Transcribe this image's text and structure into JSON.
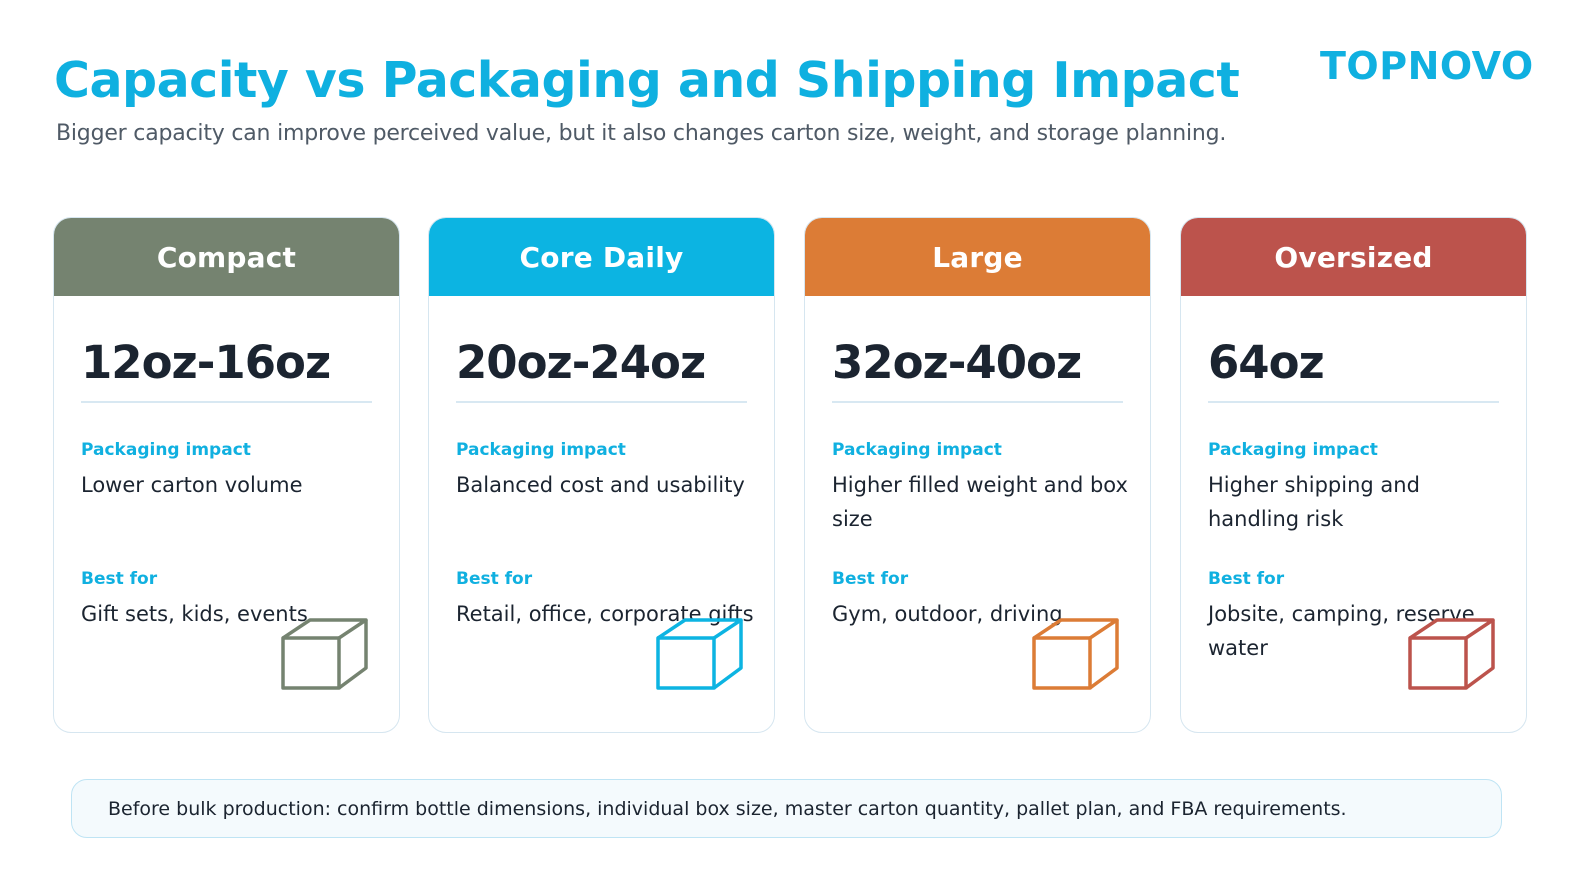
{
  "brand": "TOPNOVO",
  "title": "Capacity vs Packaging and Shipping Impact",
  "subtitle": "Bigger capacity can improve perceived value, but it also changes carton size, weight, and storage planning.",
  "cards": [
    {
      "name": "Compact",
      "color": "#758370",
      "size": "12oz-16oz",
      "packaging_label": "Packaging impact",
      "packaging": "Lower carton volume",
      "best_label": "Best for",
      "best": "Gift sets, kids, events",
      "icon": "box-icon"
    },
    {
      "name": "Core Daily",
      "color": "#0cb4e2",
      "size": "20oz-24oz",
      "packaging_label": "Packaging impact",
      "packaging": "Balanced cost and usability",
      "best_label": "Best for",
      "best": "Retail, office, corporate gifts",
      "icon": "box-icon"
    },
    {
      "name": "Large",
      "color": "#dc7c36",
      "size": "32oz-40oz",
      "packaging_label": "Packaging impact",
      "packaging": "Higher filled weight and box size",
      "best_label": "Best for",
      "best": "Gym, outdoor, driving",
      "icon": "box-icon"
    },
    {
      "name": "Oversized",
      "color": "#bc534c",
      "size": "64oz",
      "packaging_label": "Packaging impact",
      "packaging": "Higher shipping and handling risk",
      "best_label": "Best for",
      "best": "Jobsite, camping, reserve water",
      "icon": "box-icon"
    }
  ],
  "note": "Before bulk production: confirm bottle dimensions, individual box size, master carton quantity, pallet plan, and FBA requirements."
}
